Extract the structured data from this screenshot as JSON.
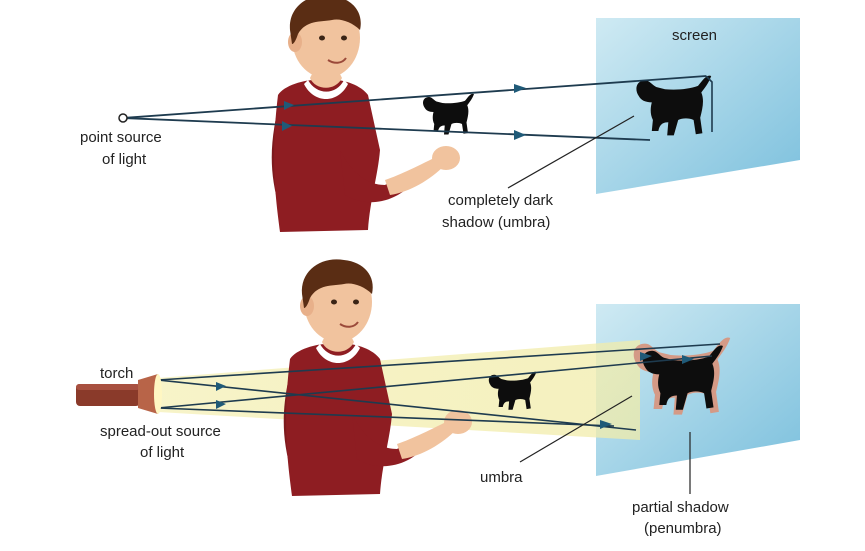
{
  "top_panel": {
    "screen_label": "screen",
    "source_label": [
      "point source",
      "of light"
    ],
    "umbra_label": [
      "completely dark",
      "shadow (umbra)"
    ]
  },
  "bottom_panel": {
    "torch_label": "torch",
    "source_label": [
      "spread-out source",
      "of light"
    ],
    "umbra_label": "umbra",
    "penumbra_label": [
      "partial shadow",
      "(penumbra)"
    ]
  },
  "colors": {
    "screen_light": "#cfeaf3",
    "screen_dark": "#7cc0dd",
    "ray": "#1e3b4f",
    "arrowhead": "#1f5a78",
    "shirt": "#8e1d22",
    "skin": "#f1c39e",
    "hair": "#5a2d14",
    "beam": "#f4f0b8",
    "torch_body": "#8a3a2a",
    "penumbra": "#d49a86",
    "shadow": "#0d0d0d"
  },
  "icons": [
    "boy-figure",
    "dog-shadow-puppet",
    "torch-icon",
    "point-light-source"
  ]
}
